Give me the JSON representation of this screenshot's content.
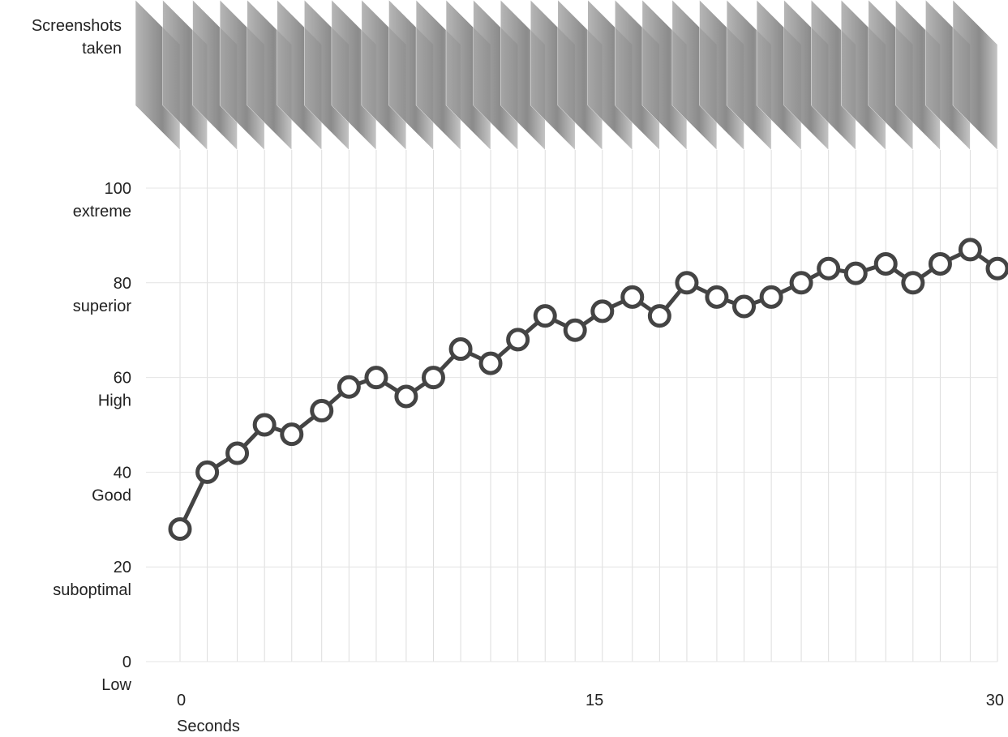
{
  "chart_data": {
    "type": "line",
    "screenshots_label": "Screenshots taken",
    "x_label": "Seconds",
    "x": [
      0,
      1,
      2.1,
      3.1,
      4.1,
      5.2,
      6.2,
      7.2,
      8.3,
      9.3,
      10.3,
      11.4,
      12.4,
      13.4,
      14.5,
      15.5,
      16.6,
      17.6,
      18.6,
      19.7,
      20.7,
      21.7,
      22.8,
      23.8,
      24.8,
      25.9,
      26.9,
      27.9,
      29,
      30
    ],
    "series": [
      {
        "color": "#444444",
        "values": [
          28,
          40,
          44,
          50,
          48,
          53,
          58,
          60,
          56,
          60,
          66,
          63,
          68,
          73,
          70,
          74,
          77,
          73,
          80,
          77,
          75,
          77,
          80,
          83,
          82,
          84,
          80,
          84,
          87,
          83
        ]
      }
    ],
    "xlim": [
      0,
      30
    ],
    "xticks": [
      0,
      15,
      30
    ],
    "ylim": [
      0,
      100
    ],
    "yticks": [
      0,
      20,
      40,
      60,
      80,
      100
    ],
    "y_levels": [
      "Low",
      "suboptimal",
      "Good",
      "High",
      "superior",
      "extreme"
    ],
    "grid": true
  }
}
